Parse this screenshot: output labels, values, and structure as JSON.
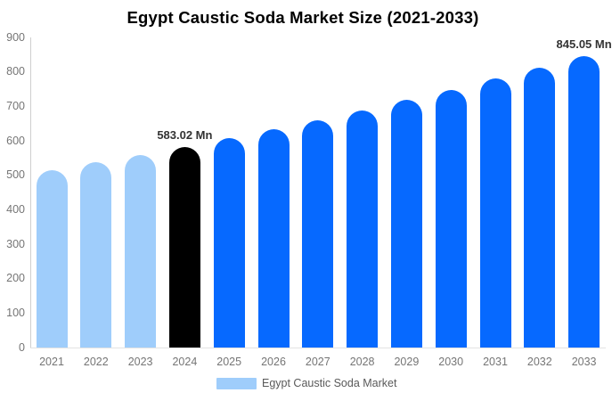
{
  "title": "Egypt Caustic Soda Market Size (2021-2033)",
  "chart_data": {
    "type": "bar",
    "title": "Egypt Caustic Soda Market Size (2021-2033)",
    "categories": [
      "2021",
      "2022",
      "2023",
      "2024",
      "2025",
      "2026",
      "2027",
      "2028",
      "2029",
      "2030",
      "2031",
      "2032",
      "2033"
    ],
    "values": [
      514.8,
      536.7,
      559.4,
      583.02,
      607.8,
      633.6,
      660.5,
      688.5,
      717.8,
      748.2,
      780.0,
      813.1,
      845.05
    ],
    "unit": "Mn",
    "bar_colors": [
      "#9fcdfb",
      "#9fcdfb",
      "#9fcdfb",
      "#000000",
      "#0669ff",
      "#0669ff",
      "#0669ff",
      "#0669ff",
      "#0669ff",
      "#0669ff",
      "#0669ff",
      "#0669ff",
      "#0669ff"
    ],
    "annotations": [
      {
        "category": "2024",
        "text": "583.02 Mn"
      },
      {
        "category": "2033",
        "text": "845.05 Mn"
      }
    ],
    "y_ticks": [
      0,
      100,
      200,
      300,
      400,
      500,
      600,
      700,
      800,
      900
    ],
    "ylim": [
      0,
      900
    ],
    "xlabel": "",
    "ylabel": "",
    "grid": false,
    "legend": {
      "position": "bottom",
      "entries": [
        {
          "label": "Egypt Caustic Soda Market",
          "color": "#9fcdfb"
        }
      ]
    }
  },
  "colors": {
    "bar_light_blue": "#9fcdfb",
    "bar_blue": "#0669ff",
    "bar_black": "#000000",
    "axis_text": "#757575",
    "annotation_text": "#333333",
    "axis_line_y": "#cfcfcf",
    "axis_line_x": "#e3e3e3",
    "legend_text": "#595959",
    "background": "#ffffff"
  }
}
